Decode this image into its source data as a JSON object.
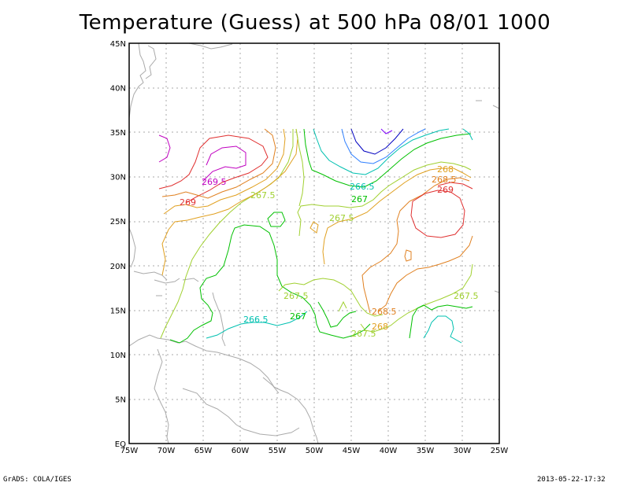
{
  "title": "Temperature (Guess) at 500 hPa 08/01 1000",
  "footer": {
    "left": "GrADS: COLA/IGES",
    "right": "2013-05-22-17:32"
  },
  "axes": {
    "lon_labels": [
      "75W",
      "70W",
      "65W",
      "60W",
      "55W",
      "50W",
      "45W",
      "40W",
      "35W",
      "30W",
      "25W"
    ],
    "lat_labels": [
      "EQ",
      "5N",
      "10N",
      "15N",
      "20N",
      "25N",
      "30N",
      "35N",
      "40N",
      "45N"
    ]
  },
  "contour_labels": [
    {
      "text": "269.5",
      "color": "#c000c0"
    },
    {
      "text": "269",
      "color": "#e03030"
    },
    {
      "text": "267.5",
      "color": "#a0d030"
    },
    {
      "text": "266.5",
      "color": "#00c0b0"
    },
    {
      "text": "267",
      "color": "#00c000"
    },
    {
      "text": "267.5",
      "color": "#a0d030"
    },
    {
      "text": "268",
      "color": "#e0a020"
    },
    {
      "text": "268.5",
      "color": "#e08020"
    },
    {
      "text": "269",
      "color": "#e03030"
    },
    {
      "text": "267.5",
      "color": "#a0d030"
    },
    {
      "text": "267",
      "color": "#00c000"
    },
    {
      "text": "266.5",
      "color": "#00c0b0"
    },
    {
      "text": "268.5",
      "color": "#e08020"
    },
    {
      "text": "268",
      "color": "#e0a020"
    },
    {
      "text": "267.5",
      "color": "#a0d030"
    },
    {
      "text": "267.5",
      "color": "#a0d030"
    }
  ],
  "colors": {
    "grid": "#aaaaaa",
    "coast": "#aaaaaa",
    "contour_266": "#0000c0",
    "contour_266_5": "#00c0b0",
    "contour_267": "#00c000",
    "contour_267_5": "#a0d030",
    "contour_268": "#e0a020",
    "contour_268_5": "#e08020",
    "contour_269": "#e03030",
    "contour_269_5": "#c000c0",
    "contour_265_5": "#8000ff"
  }
}
